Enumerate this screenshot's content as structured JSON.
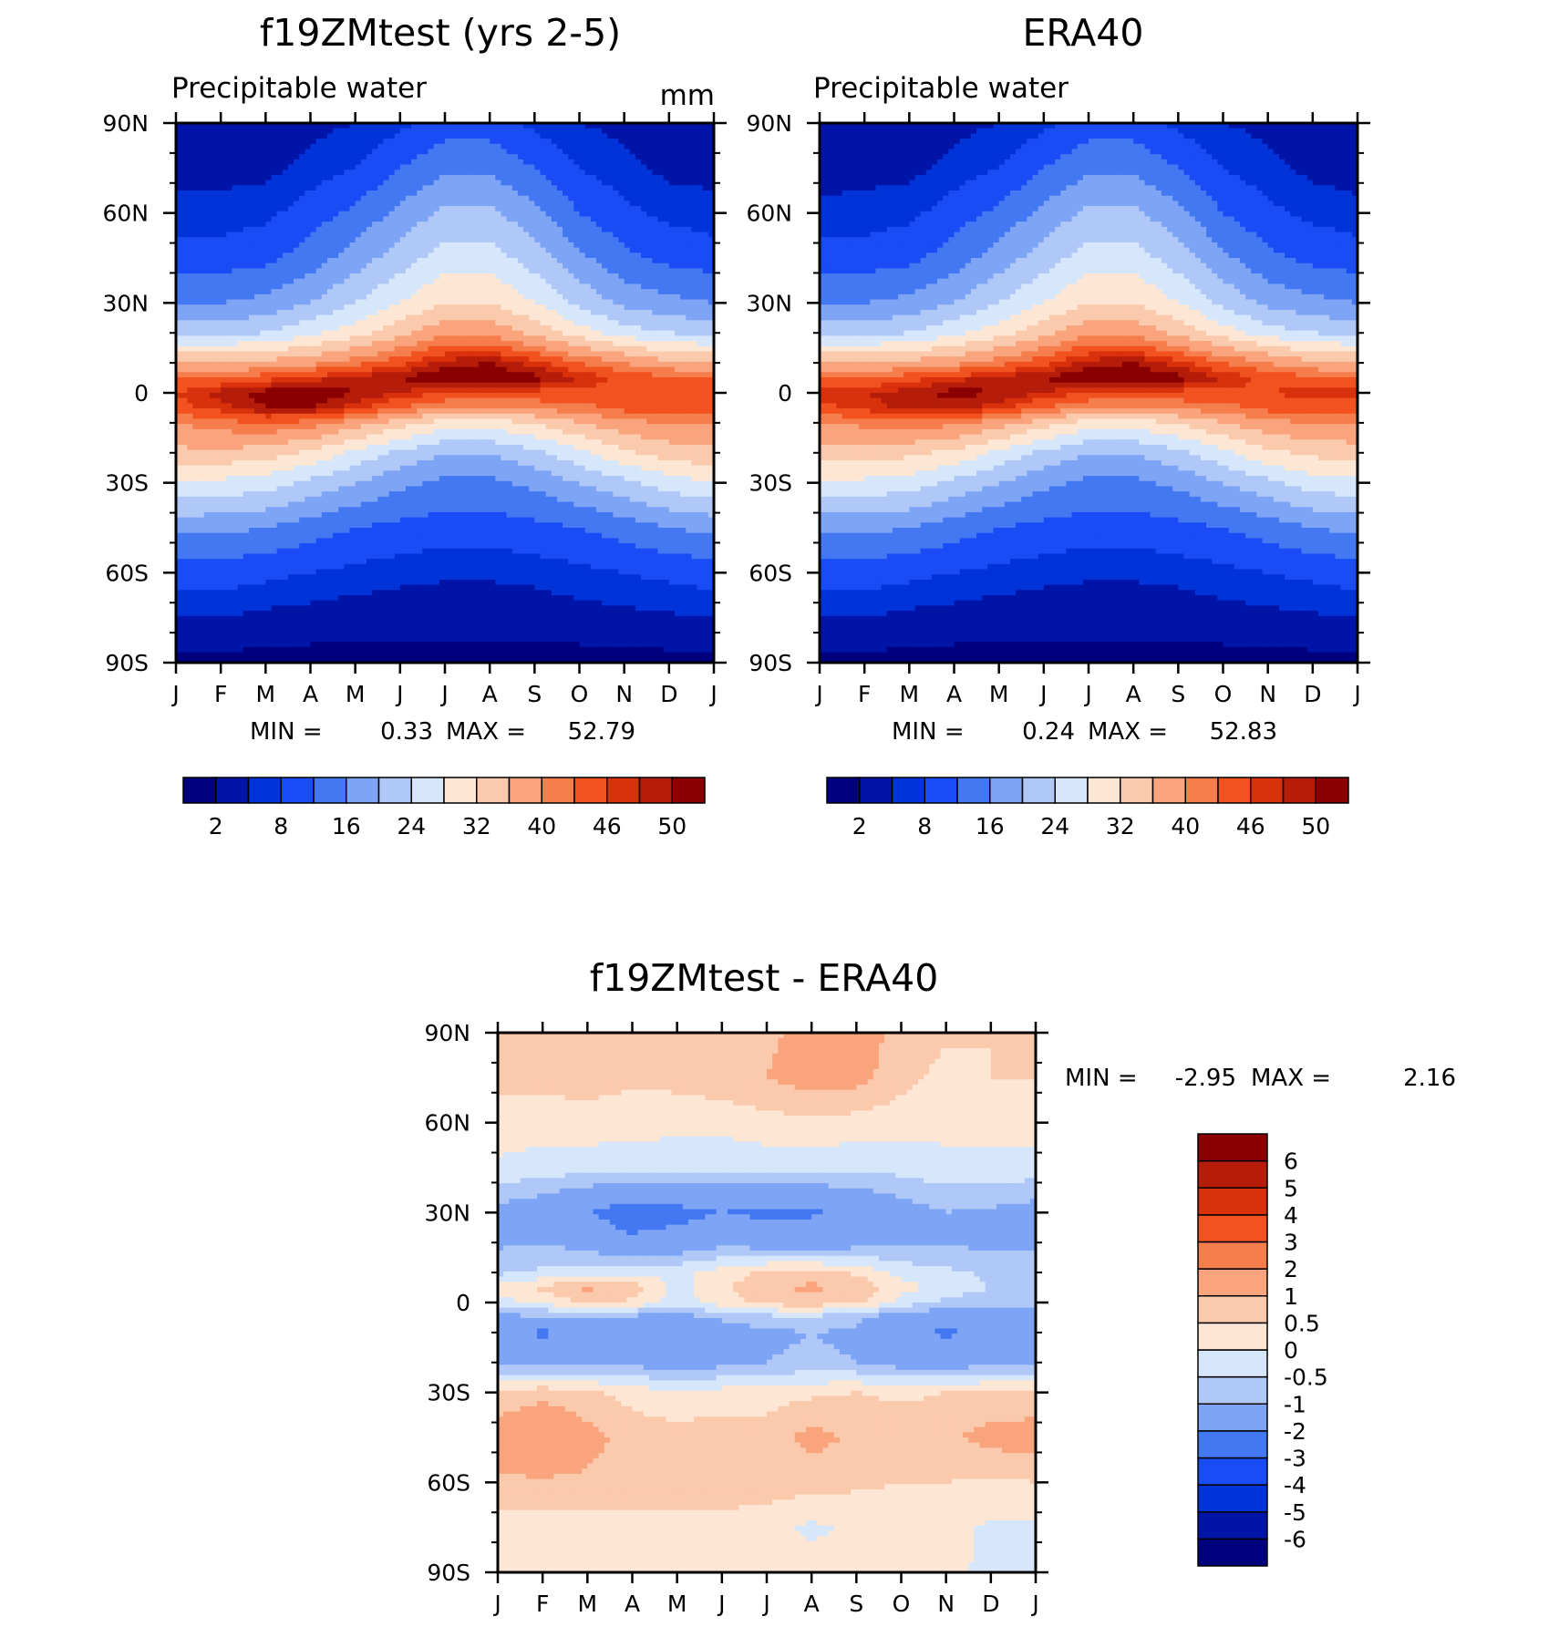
{
  "chart_data": [
    {
      "type": "contour",
      "title": "f19ZMtest (yrs 2-5)",
      "subtitle": "Precipitable water",
      "units": "mm",
      "x_ticks": [
        "J",
        "F",
        "M",
        "A",
        "M",
        "J",
        "J",
        "A",
        "S",
        "O",
        "N",
        "D",
        "J"
      ],
      "y_ticks": [
        "90N",
        "60N",
        "30N",
        "0",
        "30S",
        "60S",
        "90S"
      ],
      "min_label": "MIN =",
      "min_value": "0.33",
      "max_label": "MAX =",
      "max_value": "52.79",
      "levels": [
        2,
        5,
        8,
        12,
        16,
        20,
        24,
        28,
        32,
        36,
        40,
        43,
        46,
        48,
        50
      ],
      "colorbar_labels": [
        "2",
        "8",
        "16",
        "24",
        "32",
        "40",
        "46",
        "50"
      ],
      "colors": [
        "#00007f",
        "#0014a8",
        "#0033d8",
        "#1a4cf5",
        "#4478f2",
        "#7ea4f5",
        "#b0c8f8",
        "#d6e7fb",
        "#fde6d3",
        "#fbc9ac",
        "#f9a47c",
        "#f67d4c",
        "#f25220",
        "#d9310c",
        "#b51c0a",
        "#8a0000"
      ],
      "field": {
        "months": [
          0,
          1,
          2,
          3,
          4,
          5,
          6,
          7,
          8,
          9,
          10,
          11,
          12
        ],
        "lats": [
          90,
          75,
          60,
          45,
          30,
          20,
          10,
          5,
          0,
          -5,
          -10,
          -20,
          -30,
          -45,
          -60,
          -75,
          -90
        ],
        "grid": [
          [
            3,
            3,
            3,
            4,
            5,
            7,
            10,
            10,
            7,
            5,
            4,
            3,
            3
          ],
          [
            4,
            4,
            4,
            6,
            8,
            12,
            15,
            15,
            12,
            8,
            6,
            4,
            4
          ],
          [
            6,
            6,
            7,
            10,
            13,
            17,
            21,
            21,
            17,
            12,
            9,
            7,
            6
          ],
          [
            10,
            10,
            11,
            14,
            18,
            22,
            26,
            26,
            22,
            17,
            13,
            11,
            10
          ],
          [
            16,
            16,
            17,
            20,
            24,
            28,
            32,
            32,
            28,
            23,
            19,
            17,
            16
          ],
          [
            23,
            23,
            24,
            27,
            30,
            35,
            39,
            39,
            35,
            30,
            26,
            24,
            23
          ],
          [
            36,
            36,
            37,
            39,
            42,
            45,
            49,
            50,
            47,
            43,
            40,
            37,
            36
          ],
          [
            43,
            43,
            45,
            47,
            49,
            50,
            52,
            52,
            51,
            48,
            45,
            44,
            43
          ],
          [
            46,
            49,
            51,
            52,
            50,
            48,
            46,
            45,
            45,
            45,
            45,
            46,
            46
          ],
          [
            45,
            47,
            50,
            50,
            47,
            43,
            40,
            40,
            41,
            42,
            44,
            45,
            45
          ],
          [
            40,
            42,
            43,
            42,
            38,
            34,
            30,
            30,
            32,
            36,
            39,
            40,
            40
          ],
          [
            35,
            35,
            34,
            31,
            27,
            23,
            20,
            20,
            23,
            27,
            31,
            34,
            35
          ],
          [
            28,
            27,
            26,
            23,
            20,
            17,
            15,
            15,
            17,
            20,
            23,
            26,
            28
          ],
          [
            17,
            17,
            16,
            14,
            12,
            11,
            10,
            10,
            11,
            12,
            14,
            16,
            17
          ],
          [
            10,
            10,
            9,
            8,
            7,
            6,
            5.5,
            5.5,
            6,
            7,
            8,
            9,
            10
          ],
          [
            5,
            5,
            4,
            3.5,
            3,
            3,
            3,
            3,
            3,
            3.5,
            4,
            4.5,
            5
          ],
          [
            1,
            1,
            1,
            1,
            1,
            1,
            1,
            1,
            1,
            1,
            1,
            1,
            1
          ]
        ]
      }
    },
    {
      "type": "contour",
      "title": "ERA40",
      "subtitle": "Precipitable water",
      "units": "",
      "x_ticks": [
        "J",
        "F",
        "M",
        "A",
        "M",
        "J",
        "J",
        "A",
        "S",
        "O",
        "N",
        "D",
        "J"
      ],
      "y_ticks": [
        "90N",
        "60N",
        "30N",
        "0",
        "30S",
        "60S",
        "90S"
      ],
      "min_label": "MIN =",
      "min_value": "0.24",
      "max_label": "MAX =",
      "max_value": "52.83",
      "levels": [
        2,
        5,
        8,
        12,
        16,
        20,
        24,
        28,
        32,
        36,
        40,
        43,
        46,
        48,
        50
      ],
      "colorbar_labels": [
        "2",
        "8",
        "16",
        "24",
        "32",
        "40",
        "46",
        "50"
      ],
      "colors": [
        "#00007f",
        "#0014a8",
        "#0033d8",
        "#1a4cf5",
        "#4478f2",
        "#7ea4f5",
        "#b0c8f8",
        "#d6e7fb",
        "#fde6d3",
        "#fbc9ac",
        "#f9a47c",
        "#f67d4c",
        "#f25220",
        "#d9310c",
        "#b51c0a",
        "#8a0000"
      ],
      "field": {
        "months": [
          0,
          1,
          2,
          3,
          4,
          5,
          6,
          7,
          8,
          9,
          10,
          11,
          12
        ],
        "lats": [
          90,
          75,
          60,
          45,
          30,
          20,
          10,
          5,
          0,
          -5,
          -10,
          -20,
          -30,
          -45,
          -60,
          -75,
          -90
        ],
        "grid": [
          [
            2,
            2.5,
            3,
            4,
            5,
            7,
            10,
            10,
            7,
            5,
            4,
            3,
            2
          ],
          [
            3.5,
            4,
            4,
            6,
            8,
            12,
            15,
            15,
            12,
            8,
            6,
            4,
            3.5
          ],
          [
            6,
            6,
            7,
            10,
            13,
            17,
            21,
            21,
            17,
            12,
            9,
            7,
            6
          ],
          [
            10,
            10,
            11,
            14,
            18,
            22,
            26,
            26,
            22,
            17,
            13,
            11,
            10
          ],
          [
            16,
            16,
            17,
            20,
            24,
            28,
            32,
            32,
            28,
            23,
            19,
            17,
            16
          ],
          [
            23,
            23,
            24,
            27,
            30,
            35,
            39,
            39,
            35,
            30,
            26,
            24,
            23
          ],
          [
            36,
            36,
            37,
            39,
            42,
            45,
            49,
            50,
            47,
            43,
            40,
            37,
            36
          ],
          [
            43,
            43,
            45,
            47,
            49,
            50,
            52,
            52,
            51,
            48,
            45,
            44,
            43
          ],
          [
            47,
            48,
            49,
            51,
            50,
            48,
            46,
            45,
            45,
            45,
            46,
            47,
            47
          ],
          [
            45,
            47,
            49,
            49,
            47,
            43,
            40,
            40,
            41,
            42,
            44,
            45,
            45
          ],
          [
            40,
            41,
            42,
            41,
            38,
            34,
            30,
            30,
            32,
            36,
            39,
            40,
            40
          ],
          [
            34,
            34,
            33,
            31,
            27,
            23,
            20,
            20,
            23,
            27,
            31,
            33,
            34
          ],
          [
            27,
            27,
            26,
            23,
            20,
            17,
            15,
            15,
            17,
            20,
            23,
            26,
            27
          ],
          [
            17,
            17,
            16,
            14,
            12,
            11,
            10,
            10,
            11,
            12,
            14,
            16,
            17
          ],
          [
            10,
            10,
            9,
            8,
            7,
            6,
            5.5,
            5.5,
            6,
            7,
            8,
            9,
            10
          ],
          [
            5,
            5,
            4,
            3.5,
            3,
            3,
            3,
            3,
            3,
            3.5,
            4,
            4.5,
            5
          ],
          [
            1,
            1,
            1,
            1,
            1,
            1,
            1,
            1,
            1,
            1,
            1,
            1,
            1
          ]
        ]
      }
    },
    {
      "type": "contour",
      "title": "f19ZMtest - ERA40",
      "x_ticks": [
        "J",
        "F",
        "M",
        "A",
        "M",
        "J",
        "J",
        "A",
        "S",
        "O",
        "N",
        "D",
        "J"
      ],
      "y_ticks": [
        "90N",
        "60N",
        "30N",
        "0",
        "30S",
        "60S",
        "90S"
      ],
      "min_label": "MIN =",
      "min_value": "-2.95",
      "max_label": "MAX =",
      "max_value": "2.16",
      "levels": [
        -6,
        -5,
        -4,
        -3,
        -2,
        -1,
        -0.5,
        0,
        0.5,
        1,
        2,
        3,
        4,
        5,
        6
      ],
      "colorbar_labels": [
        "6",
        "5",
        "4",
        "3",
        "2",
        "1",
        "0.5",
        "0",
        "-0.5",
        "-1",
        "-2",
        "-3",
        "-4",
        "-5",
        "-6"
      ],
      "colors": [
        "#00007f",
        "#0014a8",
        "#0033d8",
        "#1a4cf5",
        "#4478f2",
        "#7ea4f5",
        "#b0c8f8",
        "#d6e7fb",
        "#fde6d3",
        "#fbc9ac",
        "#f9a47c",
        "#f67d4c",
        "#f25220",
        "#d9310c",
        "#b51c0a",
        "#8a0000"
      ],
      "field": {
        "months": [
          0,
          1,
          2,
          3,
          4,
          5,
          6,
          7,
          8,
          9,
          10,
          11,
          12
        ],
        "lats": [
          90,
          75,
          60,
          45,
          30,
          20,
          10,
          5,
          0,
          -5,
          -10,
          -20,
          -30,
          -45,
          -60,
          -75,
          -90
        ],
        "grid": [
          [
            0.6,
            0.7,
            0.6,
            0.7,
            0.7,
            0.8,
            0.9,
            1.2,
            1.3,
            0.8,
            0.6,
            0.5,
            0.6
          ],
          [
            0.6,
            0.7,
            0.7,
            0.6,
            0.7,
            0.8,
            1.0,
            1.3,
            1.2,
            0.7,
            0.3,
            0.5,
            0.5
          ],
          [
            0.3,
            0.2,
            0.3,
            0.2,
            0.1,
            0.2,
            0.3,
            0.4,
            0.3,
            0.2,
            0.2,
            0.2,
            0.3
          ],
          [
            -0.1,
            -0.2,
            -0.3,
            -0.3,
            -0.2,
            -0.4,
            -0.3,
            -0.3,
            -0.4,
            -0.3,
            -0.2,
            -0.2,
            -0.2
          ],
          [
            -1.2,
            -1.5,
            -2.0,
            -2.5,
            -2.3,
            -2.0,
            -2.2,
            -2.1,
            -1.8,
            -1.3,
            -1.0,
            -1.1,
            -1.3
          ],
          [
            -1.1,
            -1.0,
            -1.3,
            -1.8,
            -1.6,
            -1.2,
            -1.4,
            -1.5,
            -1.3,
            -1.1,
            -1.0,
            -1.2,
            -1.1
          ],
          [
            -0.6,
            -0.4,
            -0.3,
            -0.2,
            -0.1,
            0.2,
            0.6,
            0.7,
            0.4,
            -0.2,
            -0.4,
            -0.6,
            -0.7
          ],
          [
            0.2,
            0.6,
            1.1,
            0.8,
            -0.2,
            0.4,
            0.9,
            1.1,
            0.9,
            0.2,
            -0.2,
            -0.5,
            -0.5
          ],
          [
            -0.2,
            0.1,
            0.6,
            0.4,
            -0.3,
            0.3,
            0.7,
            0.8,
            0.6,
            -0.2,
            -0.6,
            -0.8,
            -0.8
          ],
          [
            -1.2,
            -1.1,
            -1.0,
            -1.2,
            -1.3,
            -0.9,
            -0.7,
            -0.6,
            -0.9,
            -1.4,
            -1.6,
            -1.6,
            -1.3
          ],
          [
            -1.6,
            -2.2,
            -1.6,
            -1.4,
            -1.5,
            -1.3,
            -1.1,
            -1.0,
            -1.1,
            -1.5,
            -2.2,
            -1.6,
            -1.5
          ],
          [
            -1.1,
            -1.2,
            -1.1,
            -1.2,
            -1.4,
            -1.2,
            -1.0,
            -0.9,
            -1.0,
            -1.3,
            -1.4,
            -1.2,
            -1.1
          ],
          [
            0.6,
            0.8,
            0.6,
            0.3,
            0.1,
            0.2,
            0.3,
            0.4,
            0.5,
            0.4,
            0.5,
            0.6,
            0.6
          ],
          [
            1.3,
            1.8,
            1.2,
            0.8,
            0.7,
            0.8,
            0.7,
            1.2,
            0.9,
            0.8,
            0.9,
            1.2,
            1.3
          ],
          [
            0.9,
            0.9,
            0.9,
            0.8,
            0.8,
            0.8,
            0.8,
            0.7,
            0.6,
            0.5,
            0.5,
            0.4,
            0.5
          ],
          [
            0.2,
            0.3,
            0.3,
            0.3,
            0.3,
            0.3,
            0.2,
            -0.1,
            0.1,
            0.2,
            0.2,
            -0.1,
            -0.1
          ],
          [
            0.1,
            0.2,
            0.3,
            0.3,
            0.3,
            0.3,
            0.2,
            0.2,
            0.2,
            0.2,
            0.1,
            -0.1,
            -0.1
          ]
        ]
      }
    }
  ]
}
